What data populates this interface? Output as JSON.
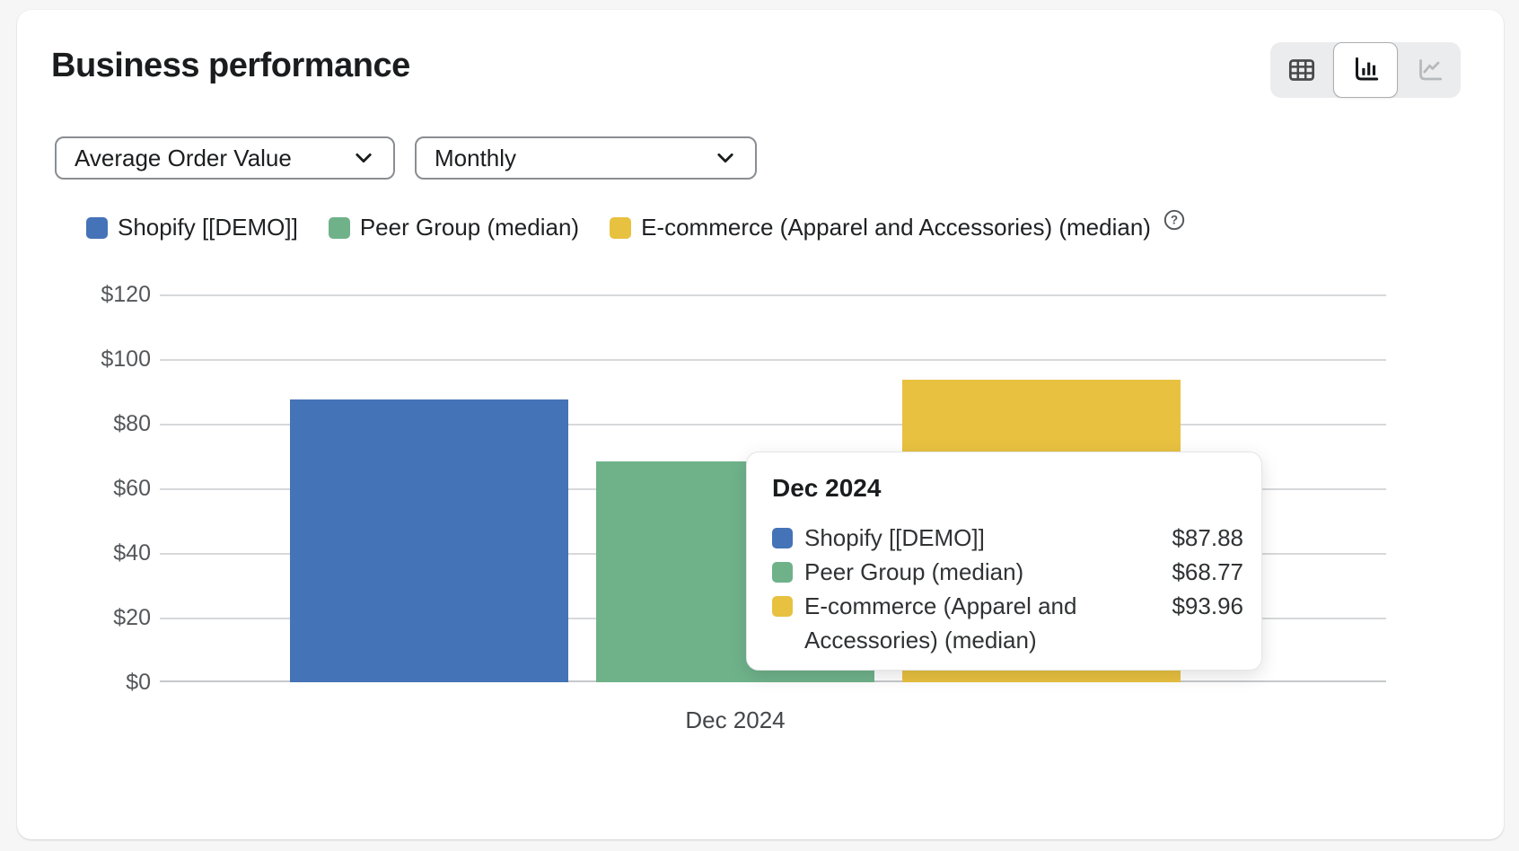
{
  "card": {
    "title": "Business performance"
  },
  "toolbar": {
    "views": [
      {
        "id": "table",
        "selected": false,
        "disabled": false
      },
      {
        "id": "bar",
        "selected": true,
        "disabled": false
      },
      {
        "id": "line",
        "selected": false,
        "disabled": true
      }
    ]
  },
  "filters": {
    "metric": {
      "value": "Average Order Value"
    },
    "granularity": {
      "value": "Monthly"
    }
  },
  "legend": {
    "items": [
      {
        "label": "Shopify [[DEMO]]",
        "color": "#4573b7"
      },
      {
        "label": "Peer Group (median)",
        "color": "#6fb28a"
      },
      {
        "label": "E-commerce (Apparel and Accessories) (median)",
        "color": "#e8c140"
      }
    ]
  },
  "chart_data": {
    "type": "bar",
    "title": "Business performance",
    "metric": "Average Order Value",
    "granularity": "Monthly",
    "categories": [
      "Dec 2024"
    ],
    "series": [
      {
        "name": "Shopify [[DEMO]]",
        "color": "#4573b7",
        "values": [
          87.88
        ]
      },
      {
        "name": "Peer Group (median)",
        "color": "#6fb28a",
        "values": [
          68.77
        ]
      },
      {
        "name": "E-commerce (Apparel and Accessories) (median)",
        "color": "#e8c140",
        "values": [
          93.96
        ]
      }
    ],
    "ylim": [
      0,
      120
    ],
    "ytick_labels": {
      "0": "$120",
      "1": "$100",
      "2": "$80",
      "3": "$60",
      "4": "$40",
      "5": "$20",
      "6": "$0"
    },
    "ytick_values": [
      120,
      100,
      80,
      60,
      40,
      20,
      0
    ],
    "xlabel": "Dec 2024",
    "grid": "horizontal",
    "legend_position": "top"
  },
  "tooltip": {
    "title": "Dec 2024",
    "rows": [
      {
        "label": "Shopify [[DEMO]]",
        "value": "$87.88",
        "color": "#4573b7"
      },
      {
        "label": "Peer Group (median)",
        "value": "$68.77",
        "color": "#6fb28a"
      },
      {
        "label": "E-commerce (Apparel and Accessories) (median)",
        "value": "$93.96",
        "color": "#e8c140"
      }
    ]
  },
  "colors": {
    "background": "#f6f6f7",
    "card": "#ffffff",
    "gridline": "#d6d8da",
    "axis_text": "#54575a"
  }
}
